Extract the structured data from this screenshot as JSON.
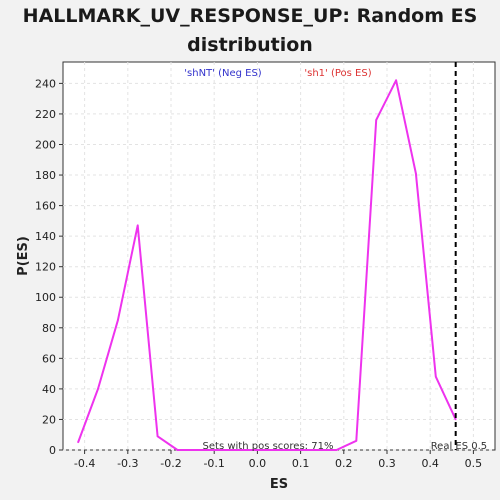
{
  "chart_data": {
    "type": "line",
    "title_line1": "HALLMARK_UV_RESPONSE_UP: Random ES",
    "title_line2": "distribution",
    "xlabel": "ES",
    "ylabel": "P(ES)",
    "xlim": [
      -0.45,
      0.55
    ],
    "ylim": [
      0,
      254
    ],
    "x_ticks": [
      -0.4,
      -0.3,
      -0.2,
      -0.1,
      0.0,
      0.1,
      0.2,
      0.3,
      0.4,
      0.5
    ],
    "x_tick_labels": [
      "-0.4",
      "-0.3",
      "-0.2",
      "-0.1",
      "0.0",
      "0.1",
      "0.2",
      "0.3",
      "0.4",
      "0.5"
    ],
    "y_ticks": [
      0,
      20,
      40,
      60,
      80,
      100,
      120,
      140,
      160,
      180,
      200,
      220,
      240
    ],
    "y_tick_labels": [
      "0",
      "20",
      "40",
      "60",
      "80",
      "100",
      "120",
      "140",
      "160",
      "180",
      "200",
      "220",
      "240"
    ],
    "grid": true,
    "series": [
      {
        "color": "#ee33ee",
        "x": [
          -0.415,
          -0.369,
          -0.323,
          -0.277,
          -0.231,
          -0.185,
          -0.139,
          -0.093,
          -0.047,
          -0.001,
          0.045,
          0.091,
          0.137,
          0.183,
          0.229,
          0.275,
          0.321,
          0.367,
          0.413,
          0.459
        ],
        "y": [
          5,
          40,
          85,
          147,
          9,
          0,
          0,
          0,
          0,
          0,
          0,
          0,
          0,
          0,
          6,
          216,
          242,
          181,
          48,
          20
        ]
      }
    ],
    "real_es": {
      "x": 0.459,
      "label": "Real ES 0.5",
      "color": "#000000"
    },
    "annotations": {
      "neg_label": "'shNT' (Neg ES)",
      "neg_color": "#3333cc",
      "pos_label": "'sh1' (Pos ES)",
      "pos_color": "#dd3333",
      "pos_fraction_text": "Sets with pos scores: 71%"
    }
  }
}
